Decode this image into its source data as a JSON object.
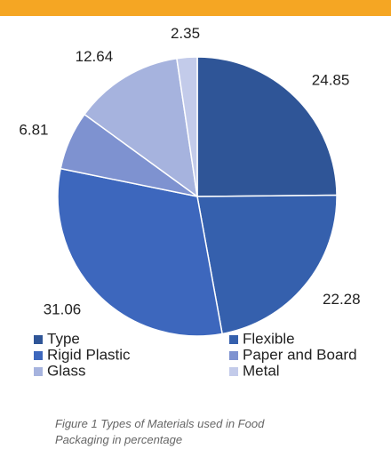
{
  "chart_data": {
    "type": "pie",
    "categories": [
      "Type",
      "Flexible",
      "Rigid Plastic",
      "Paper and Board",
      "Glass",
      "Metal"
    ],
    "values": [
      24.85,
      22.28,
      31.06,
      6.81,
      12.64,
      2.35
    ],
    "colors": [
      "#2f5597",
      "#3560ad",
      "#3d67bd",
      "#7e92d0",
      "#a6b3de",
      "#c3cbea"
    ],
    "legend": "bottom",
    "caption": "Figure 1 Types of Materials used in Food Packaging in percentage"
  }
}
